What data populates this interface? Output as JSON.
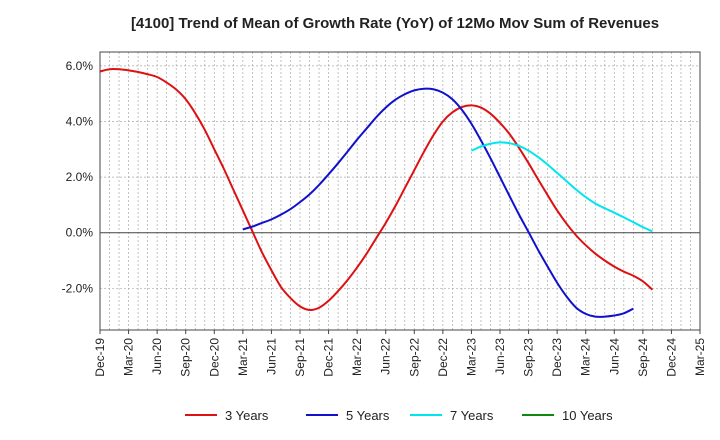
{
  "chart_data": {
    "type": "line",
    "title": "[4100]  Trend of Mean of Growth Rate (YoY) of 12Mo Mov Sum of Revenues",
    "xlabel": "",
    "ylabel": "",
    "x_ticks": [
      "Dec-19",
      "Mar-20",
      "Jun-20",
      "Sep-20",
      "Dec-20",
      "Mar-21",
      "Jun-21",
      "Sep-21",
      "Dec-21",
      "Mar-22",
      "Jun-22",
      "Sep-22",
      "Dec-22",
      "Mar-23",
      "Jun-23",
      "Sep-23",
      "Dec-23",
      "Mar-24",
      "Jun-24",
      "Sep-24",
      "Dec-24",
      "Mar-25"
    ],
    "y_ticks": [
      -2.0,
      0.0,
      2.0,
      4.0,
      6.0
    ],
    "y_tick_labels": [
      "-2.0%",
      "0.0%",
      "2.0%",
      "4.0%",
      "6.0%"
    ],
    "ylim": [
      -3.5,
      6.5
    ],
    "grid": true,
    "legend_position": "bottom",
    "series": [
      {
        "name": "3 Years",
        "color": "#dd1111",
        "start_index": 0,
        "values": [
          5.8,
          5.88,
          5.88,
          5.84,
          5.78,
          5.7,
          5.6,
          5.4,
          5.15,
          4.8,
          4.3,
          3.7,
          3.0,
          2.3,
          1.55,
          0.8,
          0.05,
          -0.7,
          -1.35,
          -1.95,
          -2.35,
          -2.65,
          -2.78,
          -2.7,
          -2.45,
          -2.1,
          -1.7,
          -1.25,
          -0.75,
          -0.2,
          0.35,
          0.95,
          1.6,
          2.25,
          2.9,
          3.5,
          4.0,
          4.33,
          4.52,
          4.58,
          4.5,
          4.28,
          3.95,
          3.55,
          3.05,
          2.5,
          1.92,
          1.35,
          0.8,
          0.32,
          -0.1,
          -0.45,
          -0.75,
          -1.0,
          -1.22,
          -1.4,
          -1.55,
          -1.75,
          -2.05
        ]
      },
      {
        "name": "5 Years",
        "color": "#1111cc",
        "start_index": 15,
        "values": [
          0.12,
          0.22,
          0.35,
          0.48,
          0.65,
          0.85,
          1.1,
          1.38,
          1.72,
          2.1,
          2.5,
          2.92,
          3.35,
          3.75,
          4.15,
          4.5,
          4.78,
          4.98,
          5.12,
          5.18,
          5.16,
          5.04,
          4.8,
          4.42,
          3.92,
          3.32,
          2.68,
          2.0,
          1.32,
          0.65,
          0.02,
          -0.62,
          -1.22,
          -1.8,
          -2.3,
          -2.7,
          -2.92,
          -3.02,
          -3.02,
          -2.98,
          -2.9,
          -2.73
        ]
      },
      {
        "name": "7 Years",
        "color": "#00e5ee",
        "start_index": 39,
        "values": [
          2.95,
          3.1,
          3.2,
          3.25,
          3.22,
          3.12,
          2.95,
          2.72,
          2.45,
          2.15,
          1.85,
          1.55,
          1.28,
          1.05,
          0.88,
          0.72,
          0.55,
          0.38,
          0.2,
          0.05
        ]
      },
      {
        "name": "10 Years",
        "color": "#118811",
        "start_index": 0,
        "values": []
      }
    ]
  }
}
